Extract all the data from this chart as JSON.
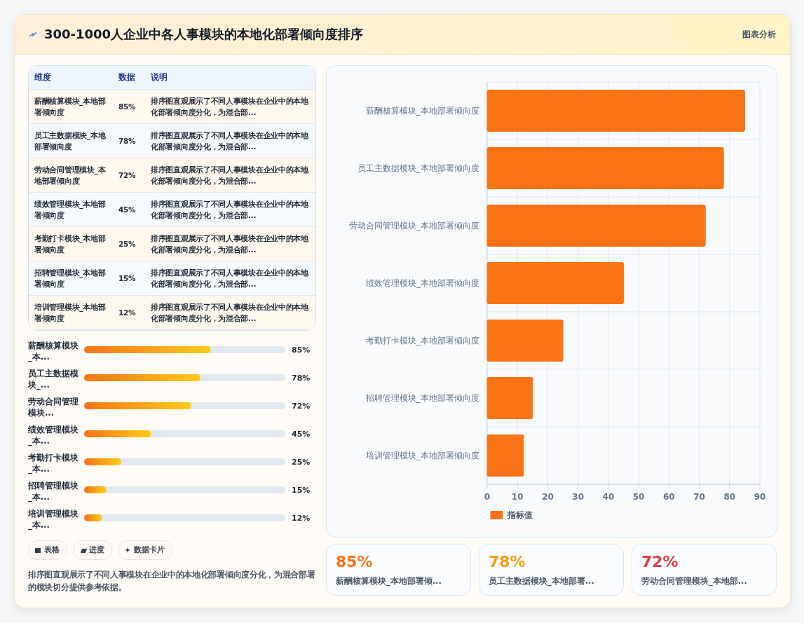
{
  "chart_data": [
    {
      "type": "other",
      "title": "300-1000人企业中各人事模块的本地化部署倾向度排序",
      "annotations": [
        "图表分析"
      ]
    },
    {
      "type": "other",
      "annotations": [
        "维度",
        "数据",
        "说明",
        "薪酬核算模块_本地部署倾向度",
        "85%",
        "排序图直观展示了不同人事模块在企业中的本地化部署倾向度分化，为混合部...",
        "员工主数据模块_本地部署倾向度",
        "78%",
        "排序图直观展示了不同人事模块在企业中的本地化部署倾向度分化，为混合部...",
        "劳动合同管理模块_本地部署倾向度",
        "72%",
        "排序图直观展示了不同人事模块在企业中的本地化部署倾向度分化，为混合部...",
        "绩效管理模块_本地部署倾向度",
        "45%",
        "排序图直观展示了不同人事模块在企业中的本地化部署倾向度分化，为混合部...",
        "考勤打卡模块_本地部署倾向度",
        "25%",
        "排序图直观展示了不同人事模块在企业中的本地化部署倾向度分化，为混合部...",
        "招聘管理模块_本地部署倾向度",
        "15%",
        "排序图直观展示了不同人事模块在企业中的本地化部署倾向度分化，为混合部...",
        "培训管理模块_本地部署倾向度",
        "12%",
        "排序图直观展示了不同人事模块在企业中的本地化部署倾向度分化，为混合部..."
      ]
    },
    {
      "type": "bar",
      "orientation": "horizontal",
      "categories": [
        "薪酬核算模块_本...",
        "员工主数据模块_...",
        "劳动合同管理模块...",
        "绩效管理模块_本...",
        "考勤打卡模块_本...",
        "招聘管理模块_本...",
        "培训管理模块_本..."
      ],
      "values": [
        85,
        78,
        72,
        45,
        25,
        15,
        12
      ],
      "value_labels": [
        "85%",
        "78%",
        "72%",
        "45%",
        "25%",
        "15%",
        "12%"
      ],
      "color": "#f97316",
      "xlim": [
        0,
        135
      ]
    },
    {
      "type": "other",
      "annotations": [
        "表格",
        "进度",
        "数据卡片",
        "排序图直观展示了不同人事模块在企业中的本地化部署倾向度分化，为混合部署的模块切分提供参考依据。"
      ]
    },
    {
      "type": "bar",
      "orientation": "horizontal",
      "categories": [
        "薪酬核算模块_本地部署倾向度",
        "员工主数据模块_本地部署倾向度",
        "劳动合同管理模块_本地部署倾向度",
        "绩效管理模块_本地部署倾向度",
        "考勤打卡模块_本地部署倾向度",
        "招聘管理模块_本地部署倾向度",
        "培训管理模块_本地部署倾向度"
      ],
      "series": [
        {
          "name": "指标值",
          "color": "#f97316",
          "values": [
            85,
            78,
            72,
            45,
            25,
            15,
            12
          ]
        }
      ],
      "xlim": [
        0,
        90
      ],
      "xticks": [
        0,
        10,
        20,
        30,
        40,
        50,
        60,
        70,
        80,
        90
      ],
      "grid": true,
      "legend": "bottom"
    },
    {
      "type": "other",
      "annotations": [
        "85%",
        "薪酬核算模块_本地部署倾...",
        "78%",
        "员工主数据模块_本地部署...",
        "72%",
        "劳动合同管理模块_本地部..."
      ],
      "colors": [
        "#f97316",
        "#f59e0b",
        "#e03e3e"
      ]
    }
  ]
}
